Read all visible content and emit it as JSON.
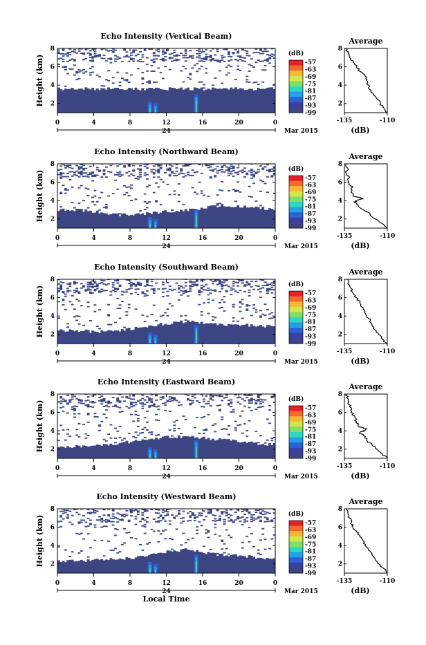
{
  "chart_data": [
    {
      "type": "heatmap",
      "title": "Echo Intensity (Vertical Beam)",
      "ylabel": "Height (km)",
      "xlabel": "",
      "x_ticks": [
        "0",
        "4",
        "8",
        "12",
        "16",
        "20",
        "0"
      ],
      "y_ticks": [
        "2",
        "4",
        "6",
        "8"
      ],
      "xlim": [
        0,
        24
      ],
      "ylim": [
        1,
        8
      ],
      "day_label": "24",
      "month_label": "Mar 2015",
      "colorbar": {
        "unit": "(dB)",
        "ticks": [
          "-57",
          "-63",
          "-69",
          "-75",
          "-81",
          "-87",
          "-93",
          "-99"
        ]
      },
      "echo_top_km": [
        3.6,
        3.6,
        3.6,
        3.6,
        3.6,
        3.6,
        3.6,
        3.6,
        3.6,
        3.6,
        3.6,
        3.6,
        3.6
      ],
      "profile": {
        "title": "Average",
        "xlabel": "(dB)",
        "x_ticks": [
          "-135",
          "-110"
        ],
        "xlim": [
          -135,
          -110
        ],
        "y_ticks": [
          "2",
          "4",
          "6",
          "8"
        ],
        "ylim": [
          1,
          8
        ],
        "heights_km": [
          8.0,
          7.5,
          7.0,
          6.5,
          6.0,
          5.5,
          5.0,
          4.5,
          4.0,
          3.5,
          3.0,
          2.5,
          2.0,
          1.5,
          1.0
        ],
        "values_db": [
          -134,
          -133,
          -132,
          -130,
          -128,
          -126,
          -123,
          -122,
          -121,
          -120,
          -118,
          -116,
          -114,
          -112,
          -110
        ]
      }
    },
    {
      "type": "heatmap",
      "title": "Echo Intensity (Northward Beam)",
      "ylabel": "Height (km)",
      "xlabel": "",
      "x_ticks": [
        "0",
        "4",
        "8",
        "12",
        "16",
        "20",
        "0"
      ],
      "y_ticks": [
        "2",
        "4",
        "6",
        "8"
      ],
      "xlim": [
        0,
        24
      ],
      "ylim": [
        1,
        8
      ],
      "day_label": "24",
      "month_label": "Mar 2015",
      "colorbar": {
        "unit": "(dB)",
        "ticks": [
          "-57",
          "-63",
          "-69",
          "-75",
          "-81",
          "-87",
          "-93",
          "-99"
        ]
      },
      "echo_top_km": [
        3.0,
        3.0,
        2.8,
        2.5,
        2.4,
        2.6,
        2.8,
        3.0,
        3.2,
        3.5,
        3.3,
        3.2,
        3.0
      ],
      "profile": {
        "title": "Average",
        "xlabel": "(dB)",
        "x_ticks": [
          "-135",
          "-110"
        ],
        "xlim": [
          -135,
          -110
        ],
        "y_ticks": [
          "2",
          "4",
          "6",
          "8"
        ],
        "ylim": [
          1,
          8
        ],
        "heights_km": [
          8.0,
          7.5,
          7.0,
          6.5,
          6.0,
          5.5,
          5.0,
          4.5,
          4.2,
          4.0,
          3.8,
          3.5,
          3.0,
          2.5,
          2.0,
          1.5,
          1.0
        ],
        "values_db": [
          -134,
          -133,
          -134,
          -132,
          -133,
          -130,
          -131,
          -130,
          -124,
          -128,
          -129,
          -127,
          -124,
          -120,
          -117,
          -113,
          -110
        ]
      }
    },
    {
      "type": "heatmap",
      "title": "Echo Intensity (Southward Beam)",
      "ylabel": "Height (km)",
      "xlabel": "",
      "x_ticks": [
        "0",
        "4",
        "8",
        "12",
        "16",
        "20",
        "0"
      ],
      "y_ticks": [
        "2",
        "4",
        "6",
        "8"
      ],
      "xlim": [
        0,
        24
      ],
      "ylim": [
        1,
        8
      ],
      "day_label": "24",
      "month_label": "Mar 2015",
      "colorbar": {
        "unit": "(dB)",
        "ticks": [
          "-57",
          "-63",
          "-69",
          "-75",
          "-81",
          "-87",
          "-93",
          "-99"
        ]
      },
      "echo_top_km": [
        2.5,
        2.4,
        2.3,
        2.3,
        2.6,
        2.9,
        3.2,
        3.4,
        3.3,
        3.0,
        3.1,
        2.9,
        2.8
      ],
      "profile": {
        "title": "Average",
        "xlabel": "(dB)",
        "x_ticks": [
          "-135",
          "-110"
        ],
        "xlim": [
          -135,
          -110
        ],
        "y_ticks": [
          "2",
          "4",
          "6",
          "8"
        ],
        "ylim": [
          1,
          8
        ],
        "heights_km": [
          8.0,
          7.5,
          7.0,
          6.5,
          6.0,
          5.5,
          5.0,
          4.5,
          4.0,
          3.5,
          3.0,
          2.5,
          2.0,
          1.5,
          1.0
        ],
        "values_db": [
          -133,
          -133,
          -131,
          -130,
          -128,
          -126,
          -125,
          -123,
          -122,
          -120,
          -119,
          -117,
          -115,
          -113,
          -110
        ]
      }
    },
    {
      "type": "heatmap",
      "title": "Echo Intensity (Eastward Beam)",
      "ylabel": "Height (km)",
      "xlabel": "",
      "x_ticks": [
        "0",
        "4",
        "8",
        "12",
        "16",
        "20",
        "0"
      ],
      "y_ticks": [
        "2",
        "4",
        "6",
        "8"
      ],
      "xlim": [
        0,
        24
      ],
      "ylim": [
        1,
        8
      ],
      "day_label": "24",
      "month_label": "Mar 2015",
      "colorbar": {
        "unit": "(dB)",
        "ticks": [
          "-57",
          "-63",
          "-69",
          "-75",
          "-81",
          "-87",
          "-93",
          "-99"
        ]
      },
      "echo_top_km": [
        2.2,
        2.3,
        2.4,
        2.6,
        2.8,
        3.1,
        3.3,
        3.4,
        3.2,
        3.0,
        2.8,
        2.6,
        2.5
      ],
      "profile": {
        "title": "Average",
        "xlabel": "(dB)",
        "x_ticks": [
          "-135",
          "-110"
        ],
        "xlim": [
          -135,
          -110
        ],
        "y_ticks": [
          "2",
          "4",
          "6",
          "8"
        ],
        "ylim": [
          1,
          8
        ],
        "heights_km": [
          8.0,
          7.5,
          7.0,
          6.5,
          6.0,
          5.5,
          5.0,
          4.5,
          4.2,
          4.0,
          3.8,
          3.5,
          3.0,
          2.5,
          2.0,
          1.5,
          1.0
        ],
        "values_db": [
          -134,
          -133,
          -133,
          -131,
          -131,
          -129,
          -128,
          -127,
          -122,
          -124,
          -126,
          -124,
          -122,
          -119,
          -116,
          -113,
          -110
        ]
      }
    },
    {
      "type": "heatmap",
      "title": "Echo Intensity (Westward Beam)",
      "ylabel": "Height (km)",
      "xlabel": "Local Time",
      "x_ticks": [
        "0",
        "4",
        "8",
        "12",
        "16",
        "20",
        "0"
      ],
      "y_ticks": [
        "2",
        "4",
        "6",
        "8"
      ],
      "xlim": [
        0,
        24
      ],
      "ylim": [
        1,
        8
      ],
      "day_label": "24",
      "month_label": "Mar 2015",
      "colorbar": {
        "unit": "(dB)",
        "ticks": [
          "-57",
          "-63",
          "-69",
          "-75",
          "-81",
          "-87",
          "-93",
          "-99"
        ]
      },
      "echo_top_km": [
        2.3,
        2.3,
        2.4,
        2.5,
        2.6,
        2.9,
        3.3,
        3.6,
        3.2,
        3.0,
        2.9,
        2.7,
        2.6
      ],
      "profile": {
        "title": "Average",
        "xlabel": "(dB)",
        "x_ticks": [
          "-135",
          "-110"
        ],
        "xlim": [
          -135,
          -110
        ],
        "y_ticks": [
          "2",
          "4",
          "6",
          "8"
        ],
        "ylim": [
          1,
          8
        ],
        "heights_km": [
          8.0,
          7.5,
          7.0,
          6.5,
          6.0,
          5.5,
          5.0,
          4.5,
          4.0,
          3.5,
          3.0,
          2.5,
          2.0,
          1.5,
          1.0
        ],
        "values_db": [
          -134,
          -133,
          -132,
          -131,
          -130,
          -128,
          -126,
          -124,
          -123,
          -121,
          -119,
          -117,
          -115,
          -112,
          -110
        ]
      }
    }
  ]
}
